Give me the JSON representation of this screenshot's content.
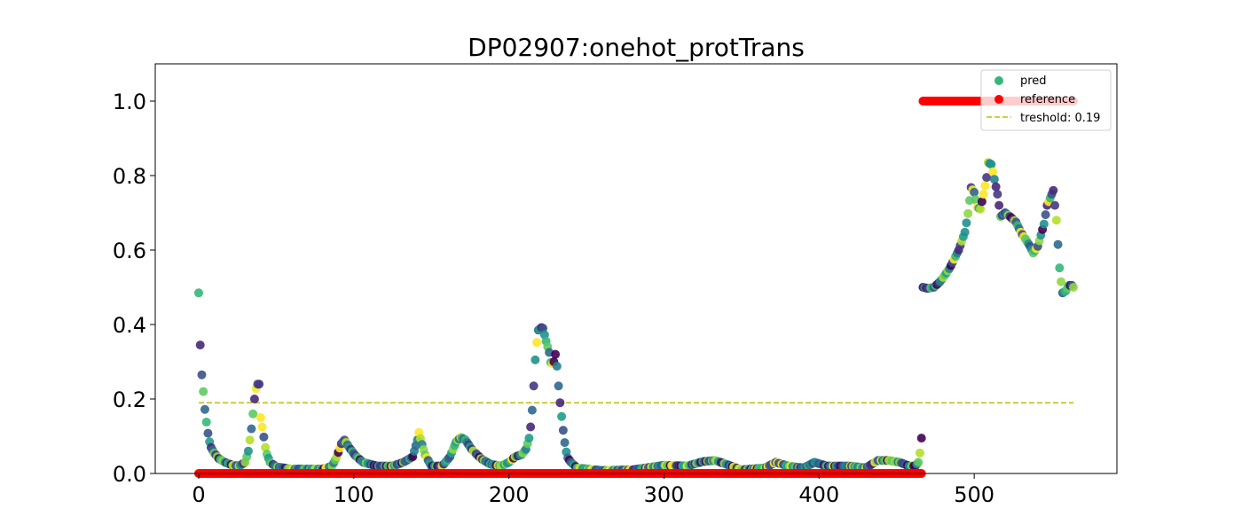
{
  "chart_data": {
    "type": "scatter",
    "title": "DP02907:onehot_protTrans",
    "xlabel": "",
    "ylabel": "",
    "xlim": [
      -28,
      592
    ],
    "ylim": [
      0,
      1.1
    ],
    "x_ticks": [
      0,
      100,
      200,
      300,
      400,
      500
    ],
    "y_ticks": [
      0.0,
      0.2,
      0.4,
      0.6,
      0.8,
      1.0
    ],
    "x_tick_labels": [
      "0",
      "100",
      "200",
      "300",
      "400",
      "500"
    ],
    "y_tick_labels": [
      "0.0",
      "0.2",
      "0.4",
      "0.6",
      "0.8",
      "1.0"
    ],
    "grid": false,
    "legend_position": "upper right",
    "legend": [
      {
        "label": "pred",
        "kind": "marker",
        "color": "#35b779"
      },
      {
        "label": "reference",
        "kind": "marker",
        "color": "#ff0000"
      },
      {
        "label": "treshold: 0.19",
        "kind": "dashed-line",
        "color": "#bfbf00"
      }
    ],
    "threshold": {
      "value": 0.19,
      "x_start": 0,
      "x_end": 564,
      "color": "#bfbf00"
    },
    "series": [
      {
        "name": "pred",
        "color_scheme": "viridis",
        "knots": [
          [
            0,
            0.485
          ],
          [
            1,
            0.345
          ],
          [
            2,
            0.265
          ],
          [
            3,
            0.22
          ],
          [
            4,
            0.172
          ],
          [
            5,
            0.138
          ],
          [
            6,
            0.108
          ],
          [
            7,
            0.085
          ],
          [
            8,
            0.07
          ],
          [
            10,
            0.055
          ],
          [
            13,
            0.04
          ],
          [
            17,
            0.03
          ],
          [
            22,
            0.022
          ],
          [
            26,
            0.02
          ],
          [
            30,
            0.03
          ],
          [
            32,
            0.06
          ],
          [
            34,
            0.12
          ],
          [
            35,
            0.16
          ],
          [
            36,
            0.2
          ],
          [
            37,
            0.228
          ],
          [
            38,
            0.24
          ],
          [
            39,
            0.24
          ],
          [
            40,
            0.15
          ],
          [
            41,
            0.125
          ],
          [
            42,
            0.098
          ],
          [
            43,
            0.07
          ],
          [
            44,
            0.052
          ],
          [
            46,
            0.03
          ],
          [
            50,
            0.018
          ],
          [
            60,
            0.012
          ],
          [
            80,
            0.012
          ],
          [
            86,
            0.02
          ],
          [
            89,
            0.045
          ],
          [
            92,
            0.08
          ],
          [
            94,
            0.09
          ],
          [
            97,
            0.07
          ],
          [
            101,
            0.048
          ],
          [
            106,
            0.03
          ],
          [
            115,
            0.02
          ],
          [
            125,
            0.02
          ],
          [
            132,
            0.03
          ],
          [
            138,
            0.045
          ],
          [
            141,
            0.09
          ],
          [
            142,
            0.11
          ],
          [
            144,
            0.078
          ],
          [
            146,
            0.05
          ],
          [
            150,
            0.02
          ],
          [
            157,
            0.02
          ],
          [
            162,
            0.045
          ],
          [
            166,
            0.085
          ],
          [
            169,
            0.097
          ],
          [
            172,
            0.09
          ],
          [
            176,
            0.065
          ],
          [
            182,
            0.04
          ],
          [
            188,
            0.025
          ],
          [
            195,
            0.02
          ],
          [
            200,
            0.03
          ],
          [
            204,
            0.045
          ],
          [
            208,
            0.05
          ],
          [
            211,
            0.065
          ],
          [
            213,
            0.095
          ],
          [
            214,
            0.125
          ],
          [
            215,
            0.17
          ],
          [
            216,
            0.235
          ],
          [
            217,
            0.305
          ],
          [
            218,
            0.352
          ],
          [
            219,
            0.385
          ],
          [
            221,
            0.392
          ],
          [
            222,
            0.39
          ],
          [
            224,
            0.355
          ],
          [
            226,
            0.325
          ],
          [
            227,
            0.298
          ],
          [
            228,
            0.295
          ],
          [
            229,
            0.3
          ],
          [
            230,
            0.32
          ],
          [
            231,
            0.288
          ],
          [
            232,
            0.235
          ],
          [
            233,
            0.19
          ],
          [
            234,
            0.153
          ],
          [
            235,
            0.116
          ],
          [
            236,
            0.083
          ],
          [
            237,
            0.058
          ],
          [
            238,
            0.042
          ],
          [
            240,
            0.03
          ],
          [
            244,
            0.015
          ],
          [
            260,
            0.008
          ],
          [
            280,
            0.01
          ],
          [
            300,
            0.022
          ],
          [
            315,
            0.02
          ],
          [
            325,
            0.032
          ],
          [
            333,
            0.035
          ],
          [
            340,
            0.025
          ],
          [
            350,
            0.01
          ],
          [
            365,
            0.015
          ],
          [
            372,
            0.03
          ],
          [
            380,
            0.02
          ],
          [
            390,
            0.015
          ],
          [
            397,
            0.03
          ],
          [
            405,
            0.02
          ],
          [
            420,
            0.02
          ],
          [
            430,
            0.015
          ],
          [
            438,
            0.035
          ],
          [
            445,
            0.035
          ],
          [
            452,
            0.03
          ],
          [
            458,
            0.02
          ],
          [
            462,
            0.02
          ],
          [
            464,
            0.03
          ],
          [
            465,
            0.055
          ],
          [
            466,
            0.095
          ],
          [
            467,
            0.5
          ],
          [
            470,
            0.497
          ],
          [
            474,
            0.5
          ],
          [
            478,
            0.515
          ],
          [
            484,
            0.55
          ],
          [
            490,
            0.6
          ],
          [
            494,
            0.648
          ],
          [
            496,
            0.698
          ],
          [
            498,
            0.768
          ],
          [
            500,
            0.755
          ],
          [
            502,
            0.715
          ],
          [
            504,
            0.71
          ],
          [
            506,
            0.75
          ],
          [
            508,
            0.795
          ],
          [
            509,
            0.835
          ],
          [
            511,
            0.83
          ],
          [
            513,
            0.79
          ],
          [
            515,
            0.75
          ],
          [
            517,
            0.69
          ],
          [
            520,
            0.7
          ],
          [
            523,
            0.69
          ],
          [
            527,
            0.675
          ],
          [
            530,
            0.648
          ],
          [
            533,
            0.63
          ],
          [
            536,
            0.61
          ],
          [
            538,
            0.592
          ],
          [
            541,
            0.61
          ],
          [
            543,
            0.64
          ],
          [
            545,
            0.67
          ],
          [
            547,
            0.72
          ],
          [
            549,
            0.74
          ],
          [
            551,
            0.76
          ],
          [
            553,
            0.68
          ],
          [
            554,
            0.615
          ],
          [
            555,
            0.552
          ],
          [
            556,
            0.515
          ],
          [
            557,
            0.485
          ],
          [
            559,
            0.49
          ],
          [
            561,
            0.505
          ],
          [
            563,
            0.505
          ],
          [
            564,
            0.5
          ]
        ]
      },
      {
        "name": "reference",
        "color": "#ff0000",
        "segments": [
          {
            "x_start": 0,
            "x_end": 466,
            "y": 0.0
          },
          {
            "x_start": 467,
            "x_end": 564,
            "y": 1.0
          }
        ]
      }
    ]
  }
}
